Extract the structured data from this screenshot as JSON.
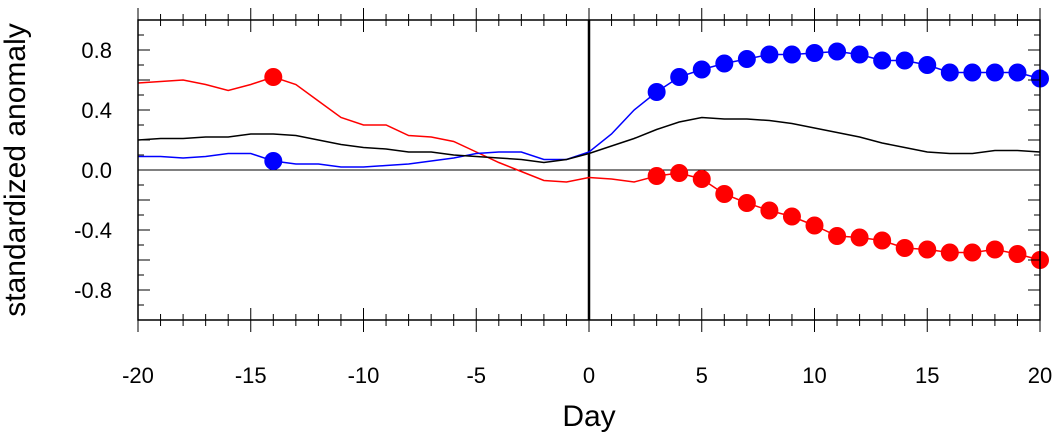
{
  "chart_data": {
    "type": "line",
    "xlabel": "Day",
    "ylabel": "standardized anomaly",
    "xlim": [
      -20,
      20
    ],
    "ylim": [
      -1.0,
      1.0
    ],
    "x_ticks": [
      -20,
      -15,
      -10,
      -5,
      0,
      5,
      10,
      15,
      20
    ],
    "x_tick_labels": [
      "-20",
      "-15",
      "-10",
      "-5",
      "0",
      "5",
      "10",
      "15",
      "20"
    ],
    "y_ticks": [
      0.8,
      0.4,
      0.0,
      -0.4,
      -0.8
    ],
    "y_tick_labels": [
      "0.8",
      "0.4",
      "0.0",
      "-0.4",
      "-0.8"
    ],
    "reference_lines": {
      "horizontal_y": 0.0,
      "vertical_x": 0
    },
    "grid": false,
    "x": [
      -20,
      -19,
      -18,
      -17,
      -16,
      -15,
      -14,
      -13,
      -12,
      -11,
      -10,
      -9,
      -8,
      -7,
      -6,
      -5,
      -4,
      -3,
      -2,
      -1,
      0,
      1,
      2,
      3,
      4,
      5,
      6,
      7,
      8,
      9,
      10,
      11,
      12,
      13,
      14,
      15,
      16,
      17,
      18,
      19,
      20
    ],
    "series": [
      {
        "color": "#ff0000",
        "values": [
          0.58,
          0.59,
          0.6,
          0.57,
          0.53,
          0.57,
          0.62,
          0.57,
          0.46,
          0.35,
          0.3,
          0.3,
          0.23,
          0.22,
          0.19,
          0.12,
          0.05,
          -0.01,
          -0.07,
          -0.08,
          -0.05,
          -0.06,
          -0.08,
          -0.04,
          -0.02,
          -0.06,
          -0.16,
          -0.22,
          -0.27,
          -0.31,
          -0.37,
          -0.44,
          -0.45,
          -0.47,
          -0.52,
          -0.53,
          -0.55,
          -0.55,
          -0.53,
          -0.56,
          -0.6
        ],
        "marked_x": [
          -14,
          3,
          4,
          5,
          6,
          7,
          8,
          9,
          10,
          11,
          12,
          13,
          14,
          15,
          16,
          17,
          18,
          19,
          20
        ]
      },
      {
        "color": "#0000ff",
        "values": [
          0.09,
          0.09,
          0.08,
          0.09,
          0.11,
          0.11,
          0.06,
          0.04,
          0.04,
          0.02,
          0.02,
          0.03,
          0.04,
          0.06,
          0.08,
          0.11,
          0.12,
          0.12,
          0.07,
          0.07,
          0.12,
          0.24,
          0.4,
          0.52,
          0.62,
          0.67,
          0.71,
          0.74,
          0.77,
          0.77,
          0.78,
          0.79,
          0.77,
          0.73,
          0.73,
          0.7,
          0.65,
          0.65,
          0.65,
          0.65,
          0.61
        ],
        "marked_x": [
          -14,
          3,
          4,
          5,
          6,
          7,
          8,
          9,
          10,
          11,
          12,
          13,
          14,
          15,
          16,
          17,
          18,
          19,
          20
        ]
      },
      {
        "color": "#000000",
        "values": [
          0.2,
          0.21,
          0.21,
          0.22,
          0.22,
          0.24,
          0.24,
          0.23,
          0.2,
          0.17,
          0.15,
          0.14,
          0.12,
          0.12,
          0.1,
          0.09,
          0.08,
          0.07,
          0.05,
          0.07,
          0.11,
          0.16,
          0.21,
          0.27,
          0.32,
          0.35,
          0.34,
          0.34,
          0.33,
          0.31,
          0.28,
          0.25,
          0.22,
          0.18,
          0.15,
          0.12,
          0.11,
          0.11,
          0.13,
          0.13,
          0.12
        ],
        "marked_x": []
      }
    ]
  }
}
